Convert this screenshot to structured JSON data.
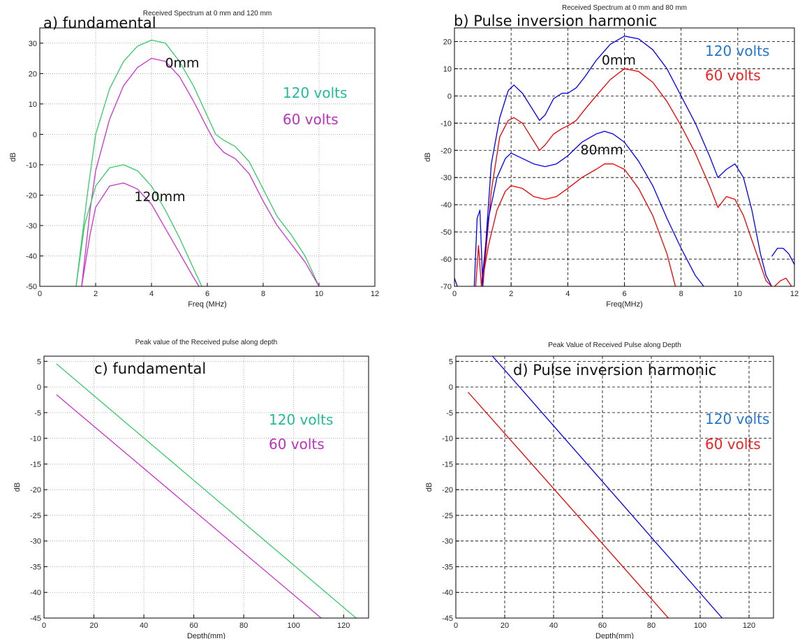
{
  "colors": {
    "fund_120": "#33cc66",
    "fund_60": "#cc33cc",
    "harm_120": "#0000ee",
    "harm_60": "#ee0000",
    "legend_fund_120": "#22bb99",
    "legend_fund_60": "#bb33bb",
    "legend_harm_120": "#2277cc",
    "legend_harm_60": "#ee2222"
  },
  "chart_data": [
    {
      "id": "a",
      "type": "line",
      "panel_label": "a) fundamental",
      "title": "Received Spectrum at 0 mm and 120 mm",
      "xlabel": "Freq (MHz)",
      "ylabel": "dB",
      "xlim": [
        0,
        12
      ],
      "ylim": [
        -50,
        35
      ],
      "xticks": [
        0,
        2,
        4,
        6,
        8,
        10,
        12
      ],
      "yticks": [
        -50,
        -40,
        -30,
        -20,
        -10,
        0,
        10,
        20,
        30
      ],
      "grid": true,
      "grid_style": "dotted",
      "legend": [
        {
          "label": "120 volts",
          "color_key": "legend_fund_120"
        },
        {
          "label": "60 volts",
          "color_key": "legend_fund_60"
        }
      ],
      "annotations": [
        {
          "text": "0mm",
          "x": 5.1,
          "y": 22
        },
        {
          "text": "120mm",
          "x": 4.3,
          "y": -22
        }
      ],
      "series": [
        {
          "color_key": "fund_120",
          "x": [
            1.3,
            1.7,
            2.0,
            2.5,
            3.0,
            3.5,
            4.0,
            4.5,
            5.0,
            5.5,
            6.0,
            6.3,
            6.6,
            7.0,
            7.5,
            8.0,
            8.5,
            9.0,
            9.5,
            10.0
          ],
          "y": [
            -50,
            -20,
            0,
            15,
            24,
            29,
            31,
            30,
            24,
            16,
            6,
            0,
            -2,
            -4,
            -9,
            -18,
            -27,
            -33,
            -40,
            -50
          ]
        },
        {
          "color_key": "fund_60",
          "x": [
            1.5,
            1.8,
            2.0,
            2.5,
            3.0,
            3.5,
            4.0,
            4.5,
            5.0,
            5.5,
            6.0,
            6.3,
            6.6,
            7.0,
            7.5,
            8.0,
            8.5,
            9.0,
            9.5,
            10.0
          ],
          "y": [
            -50,
            -25,
            -12,
            5,
            16,
            22,
            25,
            24,
            19,
            11,
            2,
            -3,
            -6,
            -8,
            -13,
            -22,
            -30,
            -36,
            -42,
            -50
          ]
        },
        {
          "color_key": "fund_120",
          "x": [
            1.3,
            1.6,
            2.0,
            2.5,
            3.0,
            3.5,
            4.0,
            4.5,
            5.0,
            5.5,
            5.8
          ],
          "y": [
            -50,
            -30,
            -17,
            -11,
            -10,
            -12,
            -17,
            -25,
            -34,
            -44,
            -50
          ]
        },
        {
          "color_key": "fund_60",
          "x": [
            1.5,
            1.8,
            2.0,
            2.5,
            3.0,
            3.5,
            4.0,
            4.5,
            5.0,
            5.5,
            5.7
          ],
          "y": [
            -50,
            -33,
            -24,
            -17,
            -16,
            -18,
            -23,
            -31,
            -39,
            -47,
            -50
          ]
        }
      ]
    },
    {
      "id": "b",
      "type": "line",
      "panel_label": "b) Pulse inversion harmonic",
      "title": "Received Spectrum at 0 mm and 80 mm",
      "xlabel": "Freq(MHz)",
      "ylabel": "dB",
      "xlim": [
        0,
        12
      ],
      "ylim": [
        -70,
        25
      ],
      "xticks": [
        0,
        2,
        4,
        6,
        8,
        10,
        12
      ],
      "yticks": [
        -70,
        -60,
        -50,
        -40,
        -30,
        -20,
        -10,
        0,
        10,
        20
      ],
      "grid": true,
      "grid_style": "dashed",
      "legend": [
        {
          "label": "120 volts",
          "color_key": "legend_harm_120"
        },
        {
          "label": "60 volts",
          "color_key": "legend_harm_60"
        }
      ],
      "annotations": [
        {
          "text": "0mm",
          "x": 5.8,
          "y": 11.5
        },
        {
          "text": "80mm",
          "x": 5.2,
          "y": -21.5
        }
      ],
      "series": [
        {
          "color_key": "harm_120",
          "x": [
            1.0,
            1.3,
            1.6,
            1.9,
            2.1,
            2.4,
            2.7,
            3.0,
            3.2,
            3.5,
            3.8,
            4.0,
            4.3,
            4.6,
            5.0,
            5.5,
            6.0,
            6.5,
            7.0,
            7.5,
            8.0,
            8.5,
            9.0,
            9.3,
            9.6,
            9.9,
            10.2,
            10.5,
            10.8,
            11.0,
            11.2
          ],
          "y": [
            -70,
            -25,
            -8,
            2,
            4,
            1,
            -4,
            -9,
            -7,
            -1,
            1,
            1,
            3,
            7,
            13,
            19,
            22,
            21,
            17,
            10,
            0,
            -10,
            -22,
            -30,
            -27,
            -25,
            -30,
            -42,
            -58,
            -66,
            -70
          ]
        },
        {
          "color_key": "harm_120",
          "x": [
            11.2,
            11.4,
            11.6,
            11.8,
            12.0
          ],
          "y": [
            -59,
            -56,
            -56,
            -58,
            -62
          ]
        },
        {
          "color_key": "harm_60",
          "x": [
            1.0,
            1.3,
            1.6,
            1.9,
            2.1,
            2.4,
            2.7,
            3.0,
            3.2,
            3.5,
            3.8,
            4.0,
            4.3,
            4.6,
            5.0,
            5.5,
            6.0,
            6.5,
            7.0,
            7.5,
            8.0,
            8.5,
            9.0,
            9.3,
            9.6,
            9.9,
            10.2,
            10.5,
            10.8,
            11.0,
            11.2
          ],
          "y": [
            -70,
            -35,
            -15,
            -9,
            -8,
            -10,
            -15,
            -20,
            -18,
            -14,
            -12,
            -11,
            -9,
            -5,
            0,
            6,
            10,
            9,
            5,
            -2,
            -11,
            -21,
            -33,
            -41,
            -37,
            -38,
            -44,
            -53,
            -62,
            -68,
            -70
          ]
        },
        {
          "color_key": "harm_60",
          "x": [
            11.3,
            11.5,
            11.7,
            11.9
          ],
          "y": [
            -70,
            -68,
            -67,
            -70
          ]
        },
        {
          "color_key": "harm_120",
          "x": [
            0.95,
            1.2,
            1.5,
            1.8,
            2.0,
            2.4,
            2.8,
            3.2,
            3.6,
            4.0,
            4.5,
            5.0,
            5.3,
            5.6,
            6.0,
            6.5,
            7.0,
            7.5,
            8.0,
            8.5,
            8.8
          ],
          "y": [
            -70,
            -45,
            -30,
            -23,
            -21,
            -23,
            -25,
            -26,
            -25,
            -22,
            -17,
            -14,
            -13,
            -14,
            -17,
            -24,
            -33,
            -45,
            -56,
            -66,
            -70
          ]
        },
        {
          "color_key": "harm_60",
          "x": [
            0.95,
            1.2,
            1.5,
            1.8,
            2.0,
            2.4,
            2.8,
            3.2,
            3.6,
            4.0,
            4.5,
            5.0,
            5.3,
            5.6,
            6.0,
            6.5,
            7.0,
            7.5,
            7.8
          ],
          "y": [
            -70,
            -55,
            -42,
            -35,
            -33,
            -34,
            -37,
            -38,
            -37,
            -34,
            -30,
            -27,
            -25,
            -25,
            -27,
            -34,
            -44,
            -58,
            -70
          ]
        },
        {
          "color_key": "harm_120",
          "x": [
            0.7,
            0.8,
            0.9,
            1.0
          ],
          "y": [
            -70,
            -45,
            -42,
            -70
          ]
        },
        {
          "color_key": "harm_60",
          "x": [
            0.75,
            0.85,
            0.95
          ],
          "y": [
            -70,
            -55,
            -70
          ]
        },
        {
          "color_key": "harm_120",
          "x": [
            0.0,
            0.1
          ],
          "y": [
            -67,
            -70
          ]
        }
      ]
    },
    {
      "id": "c",
      "type": "line",
      "panel_label": "c) fundamental",
      "title": "Peak value of the Received pulse along depth",
      "xlabel": "Depth(mm)",
      "ylabel": "dB",
      "xlim": [
        0,
        130
      ],
      "ylim": [
        -45,
        6
      ],
      "xticks": [
        0,
        20,
        40,
        60,
        80,
        100,
        120
      ],
      "yticks": [
        -45,
        -40,
        -35,
        -30,
        -25,
        -20,
        -15,
        -10,
        -5,
        0,
        5
      ],
      "grid": true,
      "grid_style": "dotted",
      "legend": [
        {
          "label": "120 volts",
          "color_key": "legend_fund_120"
        },
        {
          "label": "60 volts",
          "color_key": "legend_fund_60"
        }
      ],
      "annotations": [],
      "series": [
        {
          "color_key": "fund_120",
          "x": [
            5,
            125
          ],
          "y": [
            4.5,
            -45
          ]
        },
        {
          "color_key": "fund_60",
          "x": [
            5,
            111
          ],
          "y": [
            -1.5,
            -45
          ]
        }
      ]
    },
    {
      "id": "d",
      "type": "line",
      "panel_label": "d) Pulse inversion harmonic",
      "title": "Peak Value of Received Pulse along Depth",
      "xlabel": "Depth(mm)",
      "ylabel": "dB",
      "xlim": [
        0,
        130
      ],
      "ylim": [
        -45,
        6
      ],
      "xticks": [
        0,
        20,
        40,
        60,
        80,
        100,
        120
      ],
      "yticks": [
        -45,
        -40,
        -35,
        -30,
        -25,
        -20,
        -15,
        -10,
        -5,
        0,
        5
      ],
      "grid": true,
      "grid_style": "dashed",
      "legend": [
        {
          "label": "120 volts",
          "color_key": "legend_harm_120"
        },
        {
          "label": "60 volts",
          "color_key": "legend_harm_60"
        }
      ],
      "annotations": [],
      "series": [
        {
          "color_key": "harm_120",
          "x": [
            15,
            109
          ],
          "y": [
            6,
            -45
          ]
        },
        {
          "color_key": "harm_60",
          "x": [
            5,
            87
          ],
          "y": [
            -1,
            -45
          ]
        }
      ]
    }
  ]
}
